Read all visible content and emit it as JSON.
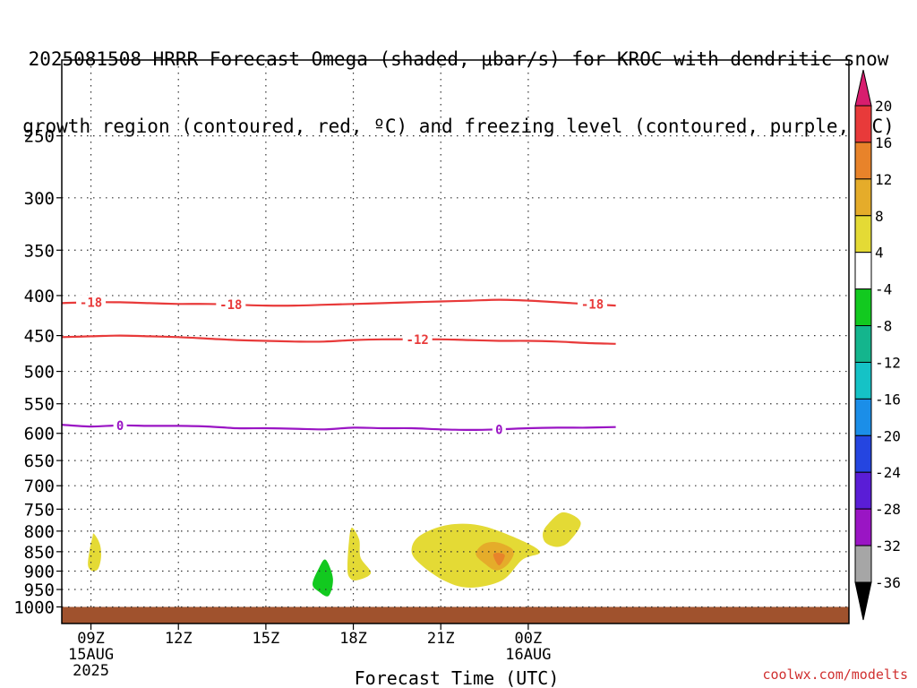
{
  "chart_data": {
    "type": "heatmap",
    "title_line1": "2025081508 HRRR Forecast Omega (shaded, μbar/s) for KROC with dendritic snow",
    "title_line2": "growth region (contoured, red, ºC) and freezing level (contoured, purple, ºC)",
    "xlabel": "Forecast Time (UTC)",
    "x_hours_range": [
      8,
      35
    ],
    "y_range_hpa": [
      200,
      1050
    ],
    "y_scale": "log-pressure (inverted)",
    "grid": true,
    "y_ticks": [
      "250",
      "300",
      "350",
      "400",
      "450",
      "500",
      "550",
      "600",
      "650",
      "700",
      "750",
      "800",
      "850",
      "900",
      "950",
      "1000"
    ],
    "x_ticks": [
      {
        "hour": 9,
        "label": "09Z",
        "sub1": "15AUG",
        "sub2": "2025"
      },
      {
        "hour": 12,
        "label": "12Z",
        "sub1": "",
        "sub2": ""
      },
      {
        "hour": 15,
        "label": "15Z",
        "sub1": "",
        "sub2": ""
      },
      {
        "hour": 18,
        "label": "18Z",
        "sub1": "",
        "sub2": ""
      },
      {
        "hour": 21,
        "label": "21Z",
        "sub1": "",
        "sub2": ""
      },
      {
        "hour": 24,
        "label": "00Z",
        "sub1": "16AUG",
        "sub2": ""
      }
    ],
    "colorbar": {
      "labels": [
        "20",
        "16",
        "12",
        "8",
        "4",
        "-4",
        "-8",
        "-12",
        "-16",
        "-20",
        "-24",
        "-28",
        "-32",
        "-36"
      ],
      "colors_top_to_bottom": [
        "#d81d6e",
        "#e83a3a",
        "#e8832a",
        "#e5ac2a",
        "#e4da35",
        "#ffffff",
        "#12c91f",
        "#14b58d",
        "#15c2c6",
        "#1b8ee8",
        "#2545e0",
        "#5a1dd6",
        "#9a15c4",
        "#a6a6a6",
        "#000000"
      ]
    },
    "series": [
      {
        "name": "-18",
        "kind": "temperature contour",
        "color": "#e83a3a",
        "x": [
          8,
          9,
          10,
          11,
          12,
          13,
          14,
          15,
          16,
          17,
          18,
          19,
          20,
          21,
          22,
          23,
          24,
          25,
          26,
          27
        ],
        "y": [
          409,
          408,
          408,
          409,
          410,
          410,
          411,
          412,
          412,
          411,
          410,
          409,
          408,
          407,
          406,
          405,
          406,
          408,
          410,
          412
        ],
        "labels_at": [
          9,
          13.8,
          26.2
        ]
      },
      {
        "name": "-12",
        "kind": "temperature contour",
        "color": "#e83a3a",
        "x": [
          8,
          9,
          10,
          11,
          12,
          13,
          14,
          15,
          16,
          17,
          18,
          19,
          20,
          21,
          22,
          23,
          24,
          25,
          26,
          27
        ],
        "y": [
          452,
          451,
          450,
          451,
          452,
          454,
          456,
          457,
          458,
          458,
          456,
          455,
          455,
          455,
          456,
          457,
          457,
          458,
          460,
          461
        ],
        "labels_at": [
          20.2
        ]
      },
      {
        "name": "0",
        "kind": "freezing level contour",
        "color": "#9a15c4",
        "x": [
          8,
          9,
          10,
          11,
          12,
          13,
          14,
          15,
          16,
          17,
          18,
          19,
          20,
          21,
          22,
          23,
          24,
          25,
          26,
          27
        ],
        "y": [
          585,
          588,
          586,
          587,
          587,
          588,
          591,
          591,
          592,
          593,
          590,
          591,
          591,
          593,
          594,
          593,
          591,
          590,
          590,
          589
        ],
        "labels_at": [
          10,
          23
        ]
      }
    ],
    "omega_regions": [
      {
        "value": "4 to 8",
        "color": "#e4da35",
        "points": [
          [
            8.9,
            885
          ],
          [
            8.95,
            848
          ],
          [
            9.05,
            815
          ],
          [
            9.1,
            806
          ],
          [
            9.3,
            830
          ],
          [
            9.35,
            862
          ],
          [
            9.25,
            893
          ],
          [
            9.05,
            900
          ]
        ]
      },
      {
        "value": "4 to 8",
        "color": "#e4da35",
        "points": [
          [
            17.8,
            885
          ],
          [
            17.85,
            825
          ],
          [
            17.95,
            792
          ],
          [
            18.2,
            820
          ],
          [
            18.25,
            865
          ],
          [
            18.6,
            905
          ],
          [
            18.1,
            925
          ],
          [
            17.85,
            915
          ]
        ]
      },
      {
        "value": "4 to 8",
        "color": "#e4da35",
        "points": [
          [
            20.0,
            842
          ],
          [
            20.3,
            810
          ],
          [
            21.2,
            786
          ],
          [
            22.3,
            786
          ],
          [
            23.5,
            814
          ],
          [
            24.4,
            850
          ],
          [
            23.8,
            870
          ],
          [
            23.1,
            925
          ],
          [
            22.0,
            945
          ],
          [
            21.1,
            925
          ],
          [
            20.2,
            875
          ]
        ]
      },
      {
        "value": "8 to 12",
        "color": "#e5ac2a",
        "points": [
          [
            22.2,
            855
          ],
          [
            22.5,
            830
          ],
          [
            23.0,
            828
          ],
          [
            23.5,
            848
          ],
          [
            23.3,
            882
          ],
          [
            22.9,
            898
          ],
          [
            22.5,
            880
          ]
        ]
      },
      {
        "value": "12 to 16",
        "color": "#e8832a",
        "points": [
          [
            22.8,
            858
          ],
          [
            23.0,
            853
          ],
          [
            23.2,
            860
          ],
          [
            23.0,
            885
          ]
        ]
      },
      {
        "value": "4 to 8",
        "color": "#e4da35",
        "points": [
          [
            24.5,
            805
          ],
          [
            24.7,
            782
          ],
          [
            25.2,
            757
          ],
          [
            25.8,
            780
          ],
          [
            25.4,
            825
          ],
          [
            25.0,
            838
          ],
          [
            24.6,
            828
          ]
        ]
      },
      {
        "value": "-8 to -4",
        "color": "#12c91f",
        "points": [
          [
            16.6,
            935
          ],
          [
            16.8,
            895
          ],
          [
            17.05,
            870
          ],
          [
            17.3,
            920
          ],
          [
            17.15,
            968
          ],
          [
            16.8,
            955
          ]
        ]
      }
    ],
    "ground": {
      "from_hpa": 1000,
      "color": "#a0522d"
    }
  },
  "watermark": "coolwx.com/modelts"
}
